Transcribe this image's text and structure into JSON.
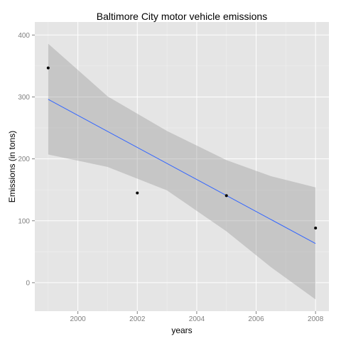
{
  "chart_data": {
    "type": "scatter",
    "title": "Baltimore City motor vehicle emissions",
    "xlabel": "years",
    "ylabel": "Emissions (in tons)",
    "xlim": [
      1998.55,
      2008.45
    ],
    "ylim": [
      -46,
      421
    ],
    "x_ticks": [
      2000,
      2002,
      2004,
      2006,
      2008
    ],
    "y_ticks": [
      0,
      100,
      200,
      300,
      400
    ],
    "grid": true,
    "points": [
      {
        "x": 1999,
        "y": 346.8
      },
      {
        "x": 2002,
        "y": 144.9
      },
      {
        "x": 2005,
        "y": 140.6
      },
      {
        "x": 2008,
        "y": 88.3
      }
    ],
    "trend": {
      "method": "lm",
      "x": [
        1999,
        2008
      ],
      "y": [
        296.1,
        63.2
      ],
      "color": "#3366ff"
    },
    "confidence_band": {
      "x": [
        1999,
        2001,
        2003,
        2005,
        2006.5,
        2008
      ],
      "lower": [
        207,
        187,
        149,
        83,
        25,
        -27
      ],
      "upper": [
        386,
        301,
        245,
        198,
        172,
        154
      ],
      "color": "#999999"
    },
    "colors": {
      "panel": "#e5e5e5",
      "grid_major": "#ffffff",
      "point": "#000000",
      "tick_text": "#7f7f7f"
    }
  }
}
